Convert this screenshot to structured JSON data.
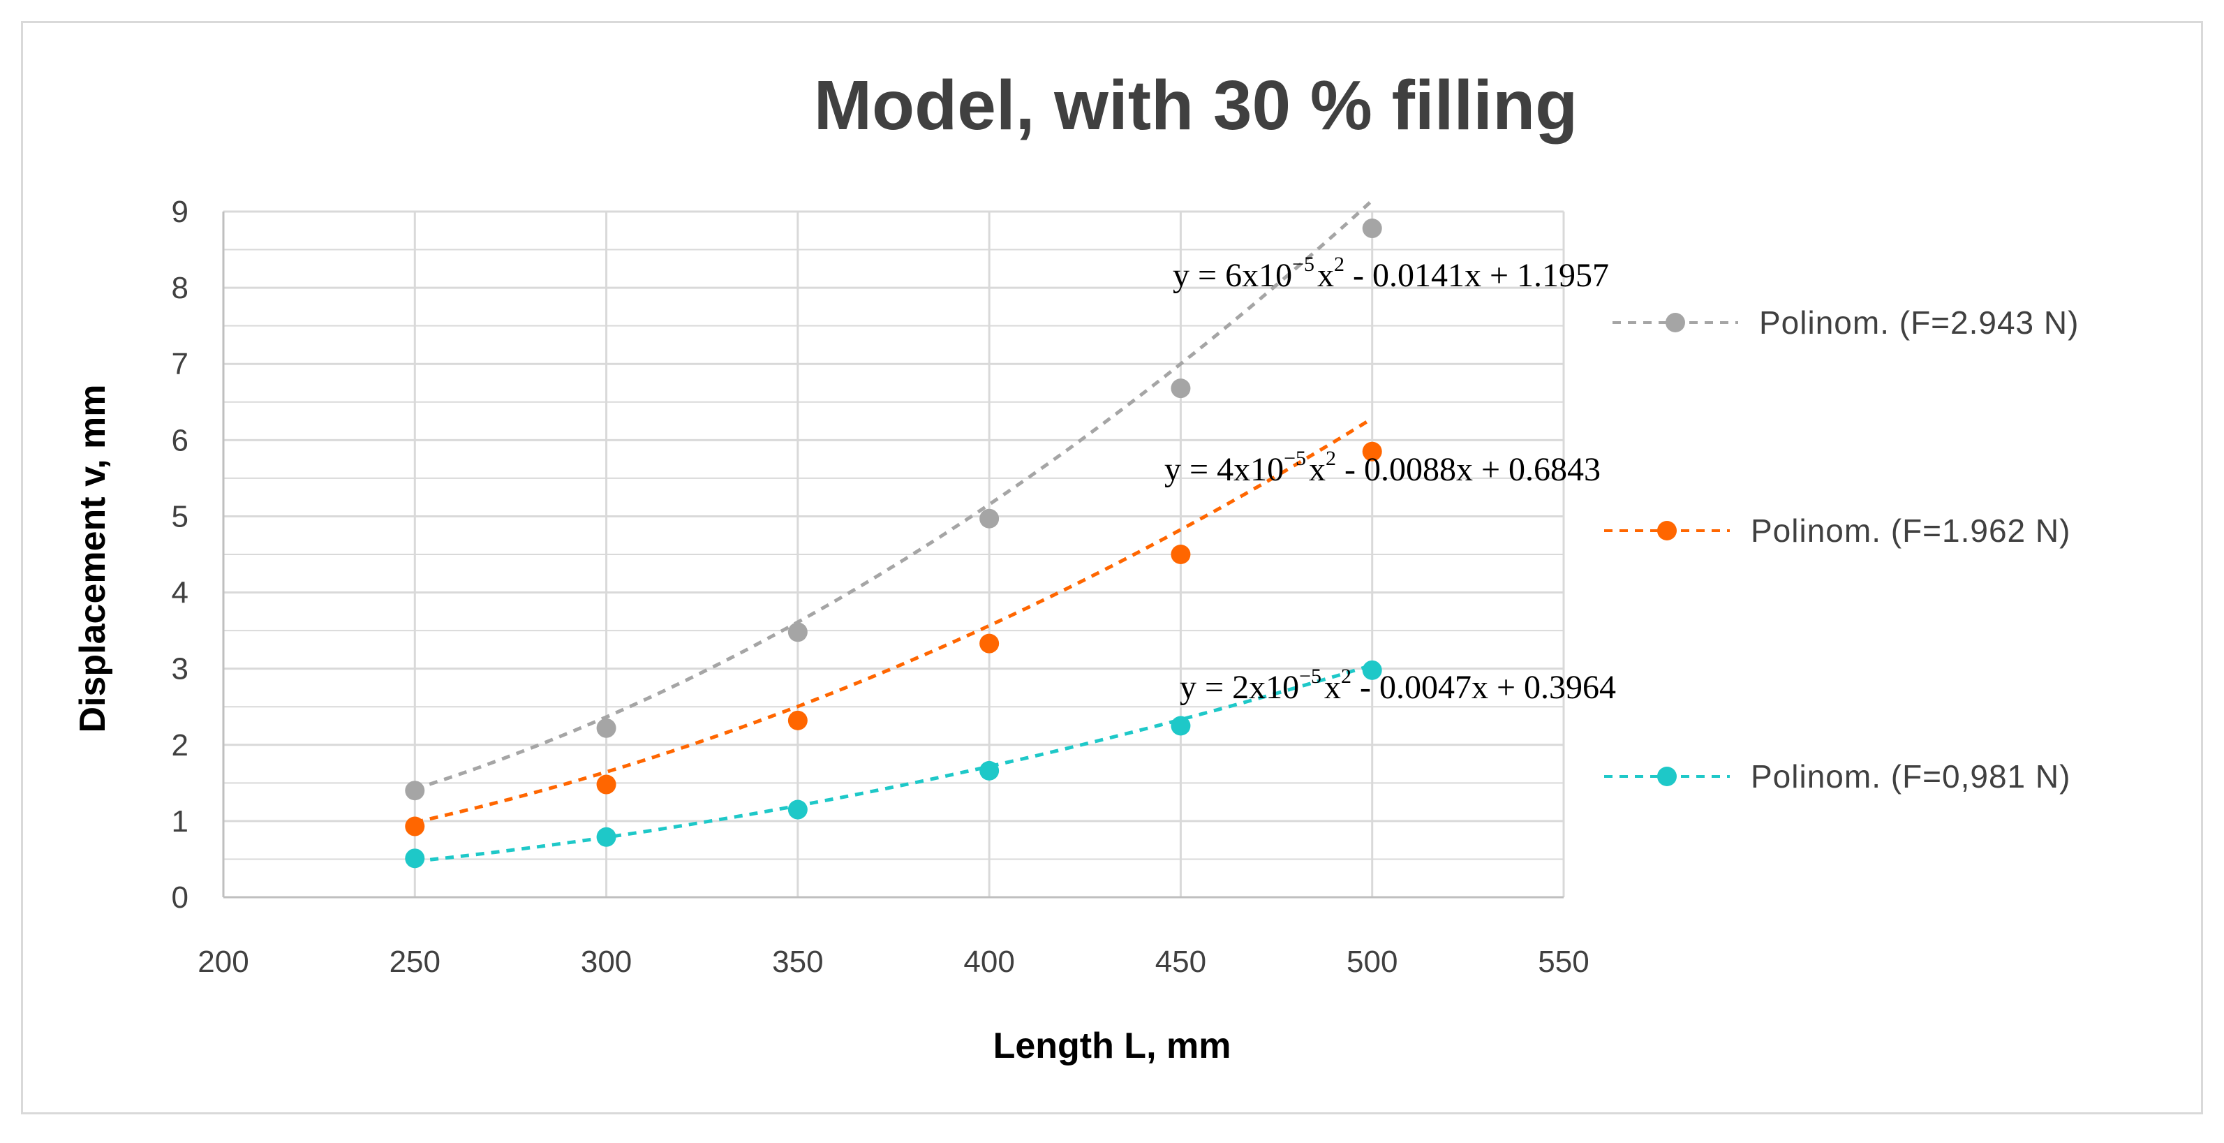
{
  "chart_data": {
    "type": "scatter",
    "title": "Model, with 30 % filling",
    "xlabel": "Length L, mm",
    "ylabel": "Displacement v, mm",
    "xlim": [
      200,
      550
    ],
    "ylim": [
      0,
      9
    ],
    "xticks": [
      200,
      250,
      300,
      350,
      400,
      450,
      500,
      550
    ],
    "yticks": [
      0,
      1,
      2,
      3,
      4,
      5,
      6,
      7,
      8,
      9
    ],
    "grid": true,
    "legend_position": "right",
    "series": [
      {
        "name": "Polinom. (F=2.943 N)",
        "color": "#a5a5a5",
        "x": [
          250,
          300,
          350,
          400,
          450,
          500
        ],
        "y": [
          1.4,
          2.22,
          3.48,
          4.97,
          6.68,
          8.78
        ],
        "trendline": {
          "a": 6e-05,
          "b": -0.0141,
          "c": 1.1957
        },
        "equation": {
          "coef": "y = 6x10",
          "exp": "−5",
          "x2": "x",
          "pow": "2",
          "rest": "- 0.0141x + 1.1957"
        }
      },
      {
        "name": "Polinom. (F=1.962 N)",
        "color": "#ff6600",
        "x": [
          250,
          300,
          350,
          400,
          450,
          500
        ],
        "y": [
          0.93,
          1.48,
          2.32,
          3.33,
          4.5,
          5.85
        ],
        "trendline": {
          "a": 4e-05,
          "b": -0.0088,
          "c": 0.6843
        },
        "equation": {
          "coef": "y = 4x10",
          "exp": "−5",
          "x2": "x",
          "pow": "2",
          "rest": "- 0.0088x + 0.6843"
        }
      },
      {
        "name": "Polinom. (F=0,981 N)",
        "color": "#1ec8c8",
        "x": [
          250,
          300,
          350,
          400,
          450,
          500
        ],
        "y": [
          0.51,
          0.79,
          1.15,
          1.66,
          2.25,
          2.98
        ],
        "trendline": {
          "a": 2e-05,
          "b": -0.0047,
          "c": 0.3964
        },
        "equation": {
          "coef": "y = 2x10",
          "exp": "−5",
          "x2": "x",
          "pow": "2",
          "rest": "- 0.0047x + 0.3964"
        }
      }
    ]
  }
}
